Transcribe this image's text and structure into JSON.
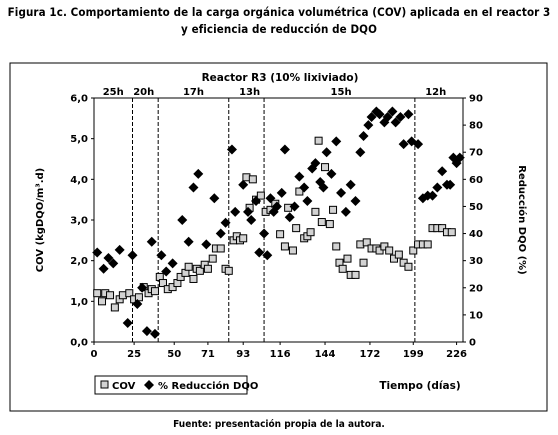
{
  "figure": {
    "title_line1": "Figura 1c. Comportamiento de la carga orgánica volumétrica (COV) aplicada en el reactor 3",
    "title_line2": "y eficiencia de reducción de DQO",
    "source": "Fuente: presentación propia de la autora."
  },
  "colors": {
    "cov_fill": "#d3d3d3",
    "cov_stroke": "#000000",
    "dqo_fill": "#000000",
    "axis": "#000000",
    "frame": "#000000"
  },
  "chart_data": {
    "type": "scatter",
    "title": "Reactor R3 (10% lixiviado)",
    "xlabel": "Tiempo (días)",
    "ylabel": "COV (kgDQO/m³.d)",
    "y2label": "Reducción DQO (%)",
    "xlim": [
      0,
      230
    ],
    "ylim": [
      0,
      6
    ],
    "y2lim": [
      0,
      90
    ],
    "x_ticks": [
      "0",
      "25",
      "50",
      "71",
      "93",
      "116",
      "144",
      "172",
      "199",
      "226"
    ],
    "x_tick_values": [
      0,
      25,
      50,
      71,
      93,
      116,
      144,
      172,
      199,
      226
    ],
    "y_ticks": [
      "0,0",
      "1,0",
      "2,0",
      "3,0",
      "4,0",
      "5,0",
      "6,0"
    ],
    "y_tick_values": [
      0,
      1,
      2,
      3,
      4,
      5,
      6
    ],
    "y2_ticks": [
      "0",
      "10",
      "20",
      "30",
      "40",
      "50",
      "60",
      "70",
      "80",
      "90"
    ],
    "y2_tick_values": [
      0,
      10,
      20,
      30,
      40,
      50,
      60,
      70,
      80,
      90
    ],
    "hrt_labels": [
      {
        "label": "25h",
        "x": 12
      },
      {
        "label": "20h",
        "x": 31
      },
      {
        "label": "17h",
        "x": 62
      },
      {
        "label": "13h",
        "x": 97
      },
      {
        "label": "15h",
        "x": 154
      },
      {
        "label": "12h",
        "x": 213
      }
    ],
    "dividers": [
      24,
      40,
      84,
      106,
      200
    ],
    "legend": [
      "COV",
      "% Reducción DQO"
    ],
    "series": [
      {
        "name": "COV",
        "axis": "left",
        "marker": "square",
        "points": [
          [
            2,
            1.2
          ],
          [
            5,
            1.0
          ],
          [
            7,
            1.2
          ],
          [
            10,
            1.15
          ],
          [
            13,
            0.85
          ],
          [
            16,
            1.05
          ],
          [
            18,
            1.15
          ],
          [
            22,
            1.2
          ],
          [
            25,
            1.05
          ],
          [
            28,
            1.1
          ],
          [
            31,
            1.35
          ],
          [
            34,
            1.2
          ],
          [
            36,
            1.3
          ],
          [
            38,
            1.25
          ],
          [
            41,
            1.6
          ],
          [
            43,
            1.45
          ],
          [
            46,
            1.3
          ],
          [
            49,
            1.35
          ],
          [
            52,
            1.45
          ],
          [
            54,
            1.6
          ],
          [
            57,
            1.7
          ],
          [
            59,
            1.85
          ],
          [
            62,
            1.55
          ],
          [
            64,
            1.8
          ],
          [
            66,
            1.75
          ],
          [
            69,
            1.9
          ],
          [
            71,
            1.8
          ],
          [
            74,
            2.05
          ],
          [
            76,
            2.3
          ],
          [
            79,
            2.3
          ],
          [
            82,
            1.8
          ],
          [
            84,
            1.75
          ],
          [
            87,
            2.5
          ],
          [
            89,
            2.6
          ],
          [
            91,
            2.5
          ],
          [
            93,
            2.55
          ],
          [
            95,
            4.05
          ],
          [
            97,
            3.3
          ],
          [
            99,
            4.0
          ],
          [
            101,
            3.5
          ],
          [
            104,
            3.6
          ],
          [
            107,
            3.2
          ],
          [
            110,
            3.25
          ],
          [
            113,
            3.4
          ],
          [
            116,
            2.65
          ],
          [
            119,
            2.35
          ],
          [
            121,
            3.3
          ],
          [
            124,
            2.25
          ],
          [
            126,
            2.8
          ],
          [
            128,
            3.7
          ],
          [
            131,
            2.55
          ],
          [
            133,
            2.6
          ],
          [
            135,
            2.7
          ],
          [
            138,
            3.2
          ],
          [
            140,
            4.95
          ],
          [
            142,
            2.95
          ],
          [
            144,
            4.3
          ],
          [
            147,
            2.9
          ],
          [
            149,
            3.25
          ],
          [
            151,
            2.35
          ],
          [
            153,
            1.95
          ],
          [
            155,
            1.8
          ],
          [
            158,
            2.05
          ],
          [
            160,
            1.65
          ],
          [
            163,
            1.65
          ],
          [
            166,
            2.4
          ],
          [
            168,
            1.95
          ],
          [
            170,
            2.45
          ],
          [
            173,
            2.3
          ],
          [
            176,
            2.3
          ],
          [
            178,
            2.25
          ],
          [
            181,
            2.35
          ],
          [
            184,
            2.25
          ],
          [
            187,
            2.05
          ],
          [
            190,
            2.15
          ],
          [
            193,
            1.95
          ],
          [
            196,
            1.85
          ],
          [
            199,
            2.25
          ],
          [
            202,
            2.4
          ],
          [
            205,
            2.4
          ],
          [
            208,
            2.4
          ],
          [
            211,
            2.8
          ],
          [
            214,
            2.8
          ],
          [
            217,
            2.8
          ],
          [
            220,
            2.7
          ],
          [
            223,
            2.7
          ]
        ]
      },
      {
        "name": "% Reducción DQO",
        "axis": "right",
        "marker": "diamond",
        "points": [
          [
            2,
            33
          ],
          [
            6,
            27
          ],
          [
            9,
            31
          ],
          [
            12,
            29
          ],
          [
            16,
            34
          ],
          [
            21,
            7
          ],
          [
            24,
            32
          ],
          [
            27,
            14
          ],
          [
            30,
            20
          ],
          [
            33,
            4
          ],
          [
            36,
            37
          ],
          [
            38,
            3
          ],
          [
            42,
            32
          ],
          [
            45,
            26
          ],
          [
            49,
            29
          ],
          [
            55,
            45
          ],
          [
            59,
            37
          ],
          [
            62,
            57
          ],
          [
            65,
            62
          ],
          [
            70,
            36
          ],
          [
            75,
            53
          ],
          [
            79,
            40
          ],
          [
            82,
            44
          ],
          [
            86,
            71
          ],
          [
            88,
            48
          ],
          [
            93,
            58
          ],
          [
            96,
            48
          ],
          [
            98,
            45
          ],
          [
            101,
            52
          ],
          [
            103,
            33
          ],
          [
            106,
            40
          ],
          [
            108,
            32
          ],
          [
            110,
            53
          ],
          [
            112,
            48
          ],
          [
            114,
            50
          ],
          [
            117,
            55
          ],
          [
            119,
            71
          ],
          [
            122,
            46
          ],
          [
            125,
            50
          ],
          [
            128,
            61
          ],
          [
            131,
            57
          ],
          [
            133,
            52
          ],
          [
            136,
            64
          ],
          [
            138,
            66
          ],
          [
            141,
            59
          ],
          [
            143,
            57
          ],
          [
            145,
            70
          ],
          [
            148,
            62
          ],
          [
            151,
            74
          ],
          [
            154,
            55
          ],
          [
            157,
            48
          ],
          [
            160,
            58
          ],
          [
            163,
            52
          ],
          [
            166,
            70
          ],
          [
            168,
            76
          ],
          [
            171,
            80
          ],
          [
            173,
            83
          ],
          [
            176,
            85
          ],
          [
            178,
            84
          ],
          [
            181,
            81
          ],
          [
            183,
            83
          ],
          [
            186,
            85
          ],
          [
            188,
            81
          ],
          [
            191,
            83
          ],
          [
            193,
            73
          ],
          [
            196,
            84
          ],
          [
            198,
            74
          ],
          [
            202,
            73
          ],
          [
            205,
            53
          ],
          [
            208,
            54
          ],
          [
            211,
            54
          ],
          [
            214,
            57
          ],
          [
            217,
            63
          ],
          [
            220,
            58
          ],
          [
            222,
            58
          ],
          [
            224,
            68
          ],
          [
            226,
            66
          ],
          [
            228,
            68
          ]
        ]
      }
    ]
  }
}
